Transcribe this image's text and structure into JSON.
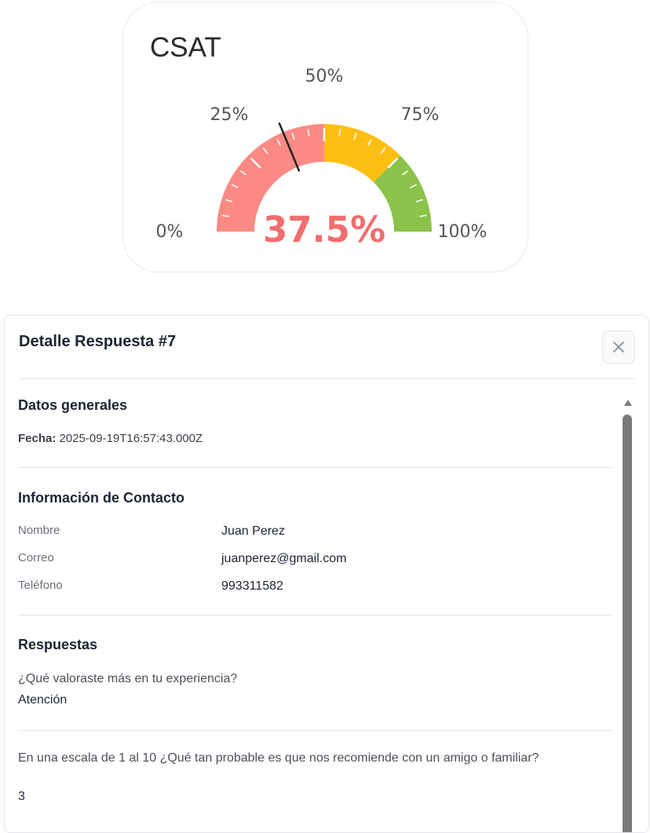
{
  "csat": {
    "title": "CSAT",
    "gauge": {
      "value": 37.5,
      "value_label": "37.5%",
      "min": 0,
      "max": 100,
      "tick_labels": [
        "0%",
        "25%",
        "50%",
        "75%",
        "100%"
      ],
      "segments": [
        {
          "from": 0,
          "to": 50,
          "color": "#fc8a84"
        },
        {
          "from": 50,
          "to": 75,
          "color": "#fdbf14"
        },
        {
          "from": 75,
          "to": 100,
          "color": "#8bc34a"
        }
      ],
      "needle_color": "#222222"
    }
  },
  "modal": {
    "title": "Detalle Respuesta #7",
    "close_icon": "close-icon",
    "general": {
      "title": "Datos generales",
      "fecha_label": "Fecha:",
      "fecha_value": "2025-09-19T16:57:43.000Z"
    },
    "contact": {
      "title": "Información de Contacto",
      "rows": [
        {
          "key": "Nombre",
          "value": "Juan Perez"
        },
        {
          "key": "Correo",
          "value": "juanperez@gmail.com"
        },
        {
          "key": "Teléfono",
          "value": "993311582"
        }
      ]
    },
    "answers": {
      "title": "Respuestas",
      "items": [
        {
          "question": "¿Qué valoraste más en tu experiencia?",
          "answer": "Atención"
        },
        {
          "question": "En una escala de 1 al 10 ¿Qué tan probable es que nos recomiende con un amigo o familiar?",
          "answer": "3"
        }
      ]
    }
  }
}
